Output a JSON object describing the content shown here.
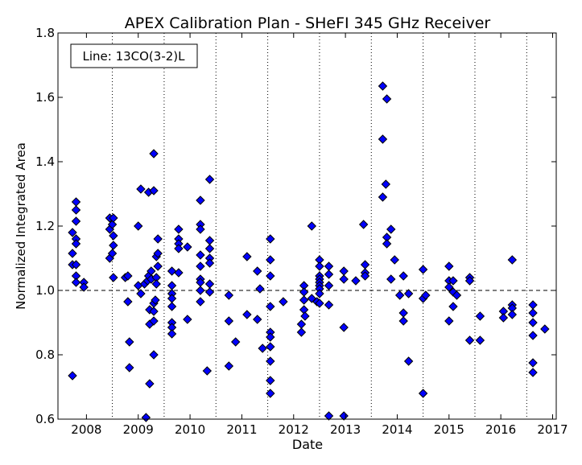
{
  "chart_data": {
    "type": "scatter",
    "title": "APEX Calibration Plan - SHeFI 345 GHz Receiver",
    "xlabel": "Date",
    "ylabel": "Normalized Integrated Area",
    "annotation": "Line: 13CO(3-2)L",
    "xlim": [
      2007.45,
      2017.07
    ],
    "ylim": [
      0.6,
      1.8
    ],
    "x_ticks": [
      2008,
      2009,
      2010,
      2011,
      2012,
      2013,
      2014,
      2015,
      2016,
      2017
    ],
    "x_tick_labels": [
      "2008",
      "2009",
      "2010",
      "2011",
      "2012",
      "2013",
      "2014",
      "2015",
      "2016",
      "2017"
    ],
    "y_ticks": [
      0.6,
      0.8,
      1.0,
      1.2,
      1.4,
      1.6,
      1.8
    ],
    "y_tick_labels": [
      "0.6",
      "0.8",
      "1.0",
      "1.2",
      "1.4",
      "1.6",
      "1.8"
    ],
    "reference_line": 1.0,
    "vertical_dotted_lines": [
      2008.5,
      2009.5,
      2010.5,
      2011.5,
      2012.5,
      2013.5,
      2014.5,
      2015.5,
      2016.5
    ],
    "marker_color": "#0000ff",
    "marker_edge": "#000000",
    "series": [
      {
        "points": [
          [
            2007.73,
            0.735
          ],
          [
            2007.73,
            1.115
          ],
          [
            2007.73,
            1.18
          ],
          [
            2007.73,
            1.08
          ],
          [
            2007.8,
            1.16
          ],
          [
            2007.8,
            1.145
          ],
          [
            2007.8,
            1.215
          ],
          [
            2007.8,
            1.25
          ],
          [
            2007.8,
            1.275
          ],
          [
            2007.8,
            1.08
          ],
          [
            2007.8,
            1.045
          ],
          [
            2007.8,
            1.025
          ],
          [
            2007.95,
            1.025
          ],
          [
            2007.95,
            1.01
          ],
          [
            2008.45,
            1.225
          ],
          [
            2008.45,
            1.19
          ],
          [
            2008.45,
            1.1
          ],
          [
            2008.5,
            1.205
          ],
          [
            2008.5,
            1.115
          ],
          [
            2008.52,
            1.225
          ],
          [
            2008.52,
            1.17
          ],
          [
            2008.52,
            1.14
          ],
          [
            2008.52,
            1.04
          ],
          [
            2008.75,
            1.04
          ],
          [
            2008.8,
            1.045
          ],
          [
            2008.8,
            0.965
          ],
          [
            2008.83,
            0.84
          ],
          [
            2008.83,
            0.76
          ],
          [
            2009.0,
            1.2
          ],
          [
            2009.0,
            1.015
          ],
          [
            2009.05,
            1.315
          ],
          [
            2009.05,
            0.99
          ],
          [
            2009.12,
            1.02
          ],
          [
            2009.15,
            0.605
          ],
          [
            2009.18,
            1.03
          ],
          [
            2009.2,
            1.045
          ],
          [
            2009.2,
            1.305
          ],
          [
            2009.22,
            0.71
          ],
          [
            2009.22,
            0.895
          ],
          [
            2009.22,
            0.94
          ],
          [
            2009.25,
            1.06
          ],
          [
            2009.25,
            1.035
          ],
          [
            2009.3,
            1.31
          ],
          [
            2009.3,
            1.425
          ],
          [
            2009.3,
            0.8
          ],
          [
            2009.3,
            0.905
          ],
          [
            2009.3,
            0.935
          ],
          [
            2009.3,
            0.96
          ],
          [
            2009.33,
            0.97
          ],
          [
            2009.35,
            1.105
          ],
          [
            2009.35,
            1.04
          ],
          [
            2009.35,
            1.02
          ],
          [
            2009.38,
            1.16
          ],
          [
            2009.38,
            1.115
          ],
          [
            2009.38,
            1.075
          ],
          [
            2009.65,
            1.06
          ],
          [
            2009.65,
            1.015
          ],
          [
            2009.65,
            0.99
          ],
          [
            2009.65,
            0.975
          ],
          [
            2009.65,
            0.95
          ],
          [
            2009.65,
            0.9
          ],
          [
            2009.65,
            0.885
          ],
          [
            2009.65,
            0.865
          ],
          [
            2009.78,
            1.19
          ],
          [
            2009.78,
            1.16
          ],
          [
            2009.78,
            1.145
          ],
          [
            2009.78,
            1.13
          ],
          [
            2009.78,
            1.055
          ],
          [
            2009.95,
            1.135
          ],
          [
            2009.95,
            0.91
          ],
          [
            2010.2,
            1.28
          ],
          [
            2010.2,
            1.205
          ],
          [
            2010.2,
            1.19
          ],
          [
            2010.2,
            1.11
          ],
          [
            2010.2,
            1.075
          ],
          [
            2010.2,
            1.035
          ],
          [
            2010.2,
            1.025
          ],
          [
            2010.2,
            1.0
          ],
          [
            2010.2,
            0.965
          ],
          [
            2010.33,
            0.75
          ],
          [
            2010.38,
            1.345
          ],
          [
            2010.38,
            1.155
          ],
          [
            2010.38,
            1.13
          ],
          [
            2010.38,
            1.1
          ],
          [
            2010.38,
            1.085
          ],
          [
            2010.38,
            1.02
          ],
          [
            2010.38,
            0.995
          ],
          [
            2010.75,
            0.985
          ],
          [
            2010.75,
            0.905
          ],
          [
            2010.75,
            0.765
          ],
          [
            2010.88,
            0.84
          ],
          [
            2011.1,
            1.105
          ],
          [
            2011.1,
            0.925
          ],
          [
            2011.3,
            1.06
          ],
          [
            2011.3,
            0.91
          ],
          [
            2011.35,
            1.005
          ],
          [
            2011.4,
            0.82
          ],
          [
            2011.55,
            1.16
          ],
          [
            2011.55,
            1.095
          ],
          [
            2011.55,
            1.045
          ],
          [
            2011.55,
            0.95
          ],
          [
            2011.55,
            0.87
          ],
          [
            2011.55,
            0.855
          ],
          [
            2011.55,
            0.825
          ],
          [
            2011.55,
            0.78
          ],
          [
            2011.55,
            0.72
          ],
          [
            2011.55,
            0.68
          ],
          [
            2011.8,
            0.965
          ],
          [
            2012.15,
            0.895
          ],
          [
            2012.15,
            0.87
          ],
          [
            2012.2,
            1.015
          ],
          [
            2012.2,
            0.995
          ],
          [
            2012.2,
            0.97
          ],
          [
            2012.2,
            0.94
          ],
          [
            2012.22,
            0.92
          ],
          [
            2012.35,
            1.2
          ],
          [
            2012.35,
            0.975
          ],
          [
            2012.45,
            0.965
          ],
          [
            2012.5,
            1.095
          ],
          [
            2012.5,
            1.075
          ],
          [
            2012.5,
            1.045
          ],
          [
            2012.5,
            1.035
          ],
          [
            2012.5,
            1.025
          ],
          [
            2012.5,
            1.015
          ],
          [
            2012.5,
            1.005
          ],
          [
            2012.5,
            0.99
          ],
          [
            2012.5,
            0.96
          ],
          [
            2012.68,
            1.075
          ],
          [
            2012.68,
            1.05
          ],
          [
            2012.68,
            1.015
          ],
          [
            2012.68,
            0.955
          ],
          [
            2012.68,
            0.61
          ],
          [
            2012.97,
            1.06
          ],
          [
            2012.97,
            1.035
          ],
          [
            2012.97,
            0.885
          ],
          [
            2012.97,
            0.61
          ],
          [
            2013.2,
            1.03
          ],
          [
            2013.35,
            1.205
          ],
          [
            2013.38,
            1.08
          ],
          [
            2013.38,
            1.055
          ],
          [
            2013.38,
            1.045
          ],
          [
            2013.72,
            1.635
          ],
          [
            2013.72,
            1.47
          ],
          [
            2013.72,
            1.29
          ],
          [
            2013.78,
            1.33
          ],
          [
            2013.8,
            1.595
          ],
          [
            2013.8,
            1.165
          ],
          [
            2013.8,
            1.145
          ],
          [
            2013.88,
            1.19
          ],
          [
            2013.88,
            1.035
          ],
          [
            2013.95,
            1.095
          ],
          [
            2014.05,
            0.985
          ],
          [
            2014.12,
            1.045
          ],
          [
            2014.12,
            0.93
          ],
          [
            2014.12,
            0.905
          ],
          [
            2014.22,
            0.99
          ],
          [
            2014.22,
            0.78
          ],
          [
            2014.5,
            1.065
          ],
          [
            2014.5,
            0.975
          ],
          [
            2014.5,
            0.68
          ],
          [
            2014.55,
            0.985
          ],
          [
            2015.0,
            1.075
          ],
          [
            2015.0,
            1.03
          ],
          [
            2015.0,
            1.01
          ],
          [
            2015.0,
            0.905
          ],
          [
            2015.08,
            1.03
          ],
          [
            2015.08,
            0.995
          ],
          [
            2015.08,
            0.95
          ],
          [
            2015.15,
            0.985
          ],
          [
            2015.4,
            1.04
          ],
          [
            2015.4,
            1.03
          ],
          [
            2015.4,
            0.845
          ],
          [
            2015.6,
            0.92
          ],
          [
            2015.6,
            0.845
          ],
          [
            2016.05,
            0.935
          ],
          [
            2016.05,
            0.915
          ],
          [
            2016.22,
            1.095
          ],
          [
            2016.22,
            0.955
          ],
          [
            2016.22,
            0.945
          ],
          [
            2016.22,
            0.925
          ],
          [
            2016.62,
            0.955
          ],
          [
            2016.62,
            0.93
          ],
          [
            2016.62,
            0.9
          ],
          [
            2016.62,
            0.86
          ],
          [
            2016.62,
            0.775
          ],
          [
            2016.62,
            0.745
          ],
          [
            2016.85,
            0.88
          ]
        ]
      }
    ]
  }
}
